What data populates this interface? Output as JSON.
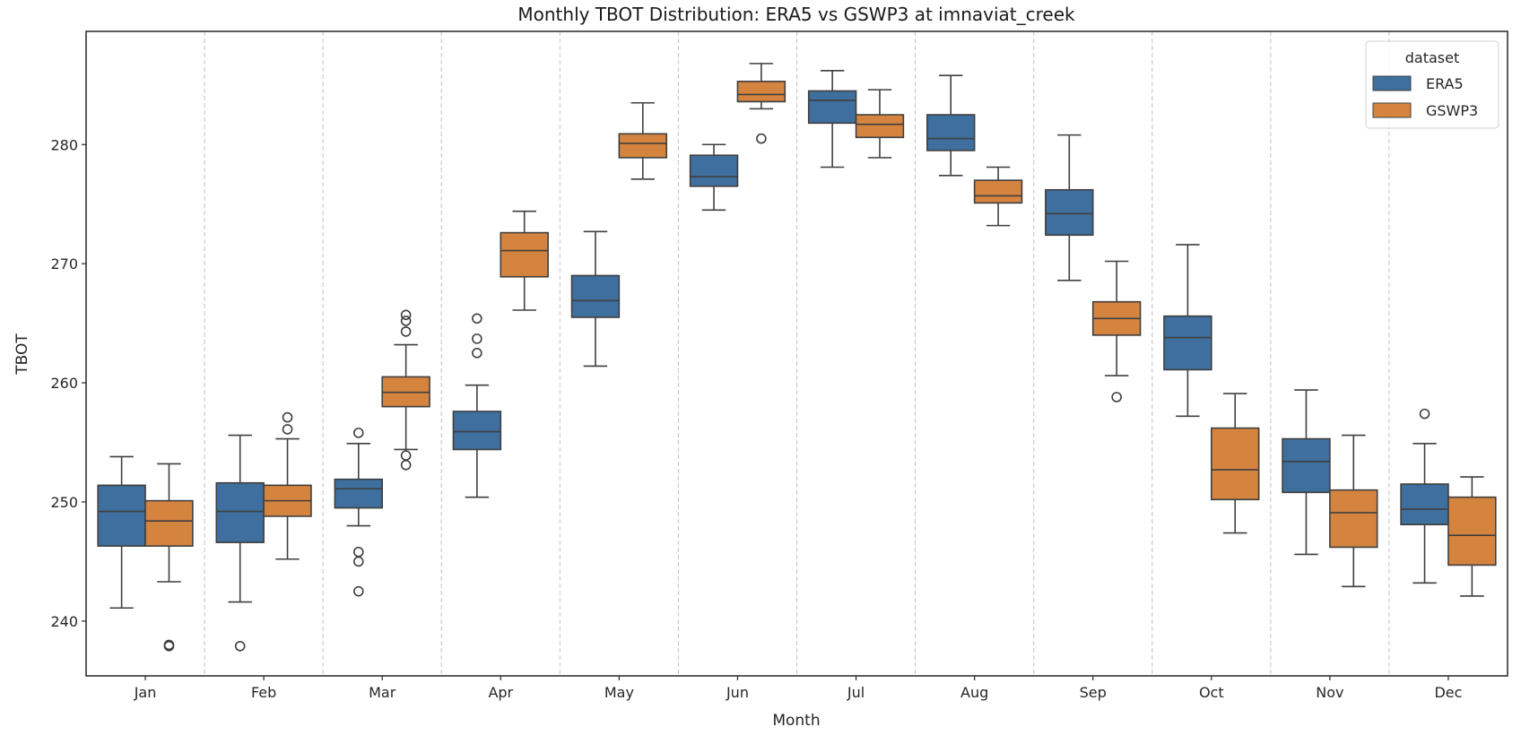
{
  "chart_data": {
    "type": "boxplot",
    "title": "Monthly TBOT Distribution: ERA5 vs GSWP3 at imnaviat_creek",
    "xlabel": "Month",
    "ylabel": "TBOT",
    "ylim": [
      235.4,
      289.5
    ],
    "yticks": [
      240,
      250,
      260,
      270,
      280
    ],
    "grid": "vertical dashed separators between months",
    "categories": [
      "Jan",
      "Feb",
      "Mar",
      "Apr",
      "May",
      "Jun",
      "Jul",
      "Aug",
      "Sep",
      "Oct",
      "Nov",
      "Dec"
    ],
    "legend": {
      "title": "dataset",
      "placement": "top-right"
    },
    "series": [
      {
        "name": "ERA5",
        "color": "#3e6f9e",
        "boxes": [
          {
            "whislo": 241.1,
            "q1": 246.3,
            "med": 249.2,
            "q3": 251.4,
            "whishi": 253.8,
            "fliers": []
          },
          {
            "whislo": 241.6,
            "q1": 246.6,
            "med": 249.2,
            "q3": 251.6,
            "whishi": 255.6,
            "fliers": [
              237.9
            ]
          },
          {
            "whislo": 248.0,
            "q1": 249.5,
            "med": 251.1,
            "q3": 251.9,
            "whishi": 254.9,
            "fliers": [
              255.8,
              245.8,
              245.0,
              242.5
            ]
          },
          {
            "whislo": 250.4,
            "q1": 254.4,
            "med": 255.9,
            "q3": 257.6,
            "whishi": 259.8,
            "fliers": [
              265.4,
              263.7,
              262.5
            ]
          },
          {
            "whislo": 261.4,
            "q1": 265.5,
            "med": 266.9,
            "q3": 269.0,
            "whishi": 272.7,
            "fliers": []
          },
          {
            "whislo": 274.5,
            "q1": 276.5,
            "med": 277.3,
            "q3": 279.1,
            "whishi": 280.0,
            "fliers": []
          },
          {
            "whislo": 278.1,
            "q1": 281.8,
            "med": 283.7,
            "q3": 284.5,
            "whishi": 286.2,
            "fliers": []
          },
          {
            "whislo": 277.4,
            "q1": 279.5,
            "med": 280.5,
            "q3": 282.5,
            "whishi": 285.8,
            "fliers": []
          },
          {
            "whislo": 268.6,
            "q1": 272.4,
            "med": 274.2,
            "q3": 276.2,
            "whishi": 280.8,
            "fliers": []
          },
          {
            "whislo": 257.2,
            "q1": 261.1,
            "med": 263.8,
            "q3": 265.6,
            "whishi": 271.6,
            "fliers": []
          },
          {
            "whislo": 245.6,
            "q1": 250.8,
            "med": 253.4,
            "q3": 255.3,
            "whishi": 259.4,
            "fliers": []
          },
          {
            "whislo": 243.2,
            "q1": 248.1,
            "med": 249.4,
            "q3": 251.5,
            "whishi": 254.9,
            "fliers": [
              257.4
            ]
          }
        ]
      },
      {
        "name": "GSWP3",
        "color": "#d5843f",
        "boxes": [
          {
            "whislo": 243.3,
            "q1": 246.3,
            "med": 248.4,
            "q3": 250.1,
            "whishi": 253.2,
            "fliers": [
              237.9,
              238.0
            ]
          },
          {
            "whislo": 245.2,
            "q1": 248.8,
            "med": 250.1,
            "q3": 251.4,
            "whishi": 255.3,
            "fliers": [
              257.1,
              256.1
            ]
          },
          {
            "whislo": 254.4,
            "q1": 258.0,
            "med": 259.2,
            "q3": 260.5,
            "whishi": 263.2,
            "fliers": [
              265.7,
              265.2,
              264.3,
              253.9,
              253.1
            ]
          },
          {
            "whislo": 266.1,
            "q1": 268.9,
            "med": 271.1,
            "q3": 272.6,
            "whishi": 274.4,
            "fliers": []
          },
          {
            "whislo": 277.1,
            "q1": 278.9,
            "med": 280.1,
            "q3": 280.9,
            "whishi": 283.5,
            "fliers": []
          },
          {
            "whislo": 283.0,
            "q1": 283.6,
            "med": 284.2,
            "q3": 285.3,
            "whishi": 286.8,
            "fliers": [
              280.5
            ]
          },
          {
            "whislo": 278.9,
            "q1": 280.6,
            "med": 281.7,
            "q3": 282.5,
            "whishi": 284.6,
            "fliers": []
          },
          {
            "whislo": 273.2,
            "q1": 275.1,
            "med": 275.7,
            "q3": 277.0,
            "whishi": 278.1,
            "fliers": []
          },
          {
            "whislo": 260.6,
            "q1": 264.0,
            "med": 265.4,
            "q3": 266.8,
            "whishi": 270.2,
            "fliers": [
              258.8
            ]
          },
          {
            "whislo": 247.4,
            "q1": 250.2,
            "med": 252.7,
            "q3": 256.2,
            "whishi": 259.1,
            "fliers": []
          },
          {
            "whislo": 242.9,
            "q1": 246.2,
            "med": 249.1,
            "q3": 251.0,
            "whishi": 255.6,
            "fliers": []
          },
          {
            "whislo": 242.1,
            "q1": 244.7,
            "med": 247.2,
            "q3": 250.4,
            "whishi": 252.1,
            "fliers": []
          }
        ]
      }
    ]
  }
}
